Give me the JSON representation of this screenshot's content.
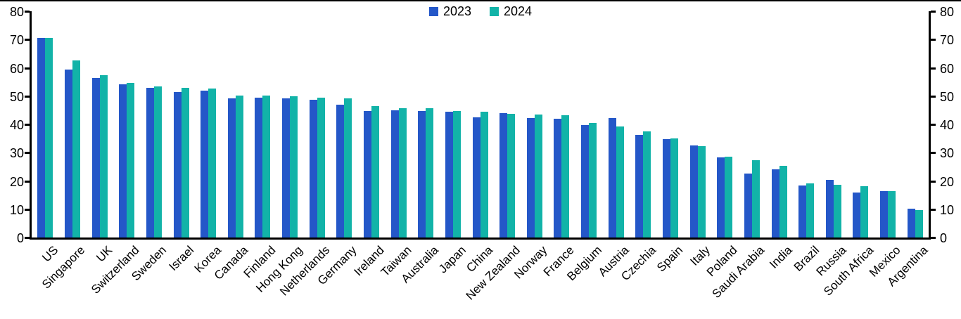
{
  "chart_data": {
    "type": "bar",
    "title": "",
    "xlabel": "",
    "ylabel": "",
    "ylim": [
      0,
      80
    ],
    "yticks": [
      0,
      10,
      20,
      30,
      40,
      50,
      60,
      70,
      80
    ],
    "grid": false,
    "legend_position": "top-center",
    "dual_y_axis": true,
    "axis_color": "#000000",
    "categories": [
      "US",
      "Singapore",
      "UK",
      "Switzerland",
      "Sweden",
      "Israel",
      "Korea",
      "Canada",
      "Finland",
      "Hong Kong",
      "Netherlands",
      "Germany",
      "Ireland",
      "Taiwan",
      "Australia",
      "Japan",
      "China",
      "New Zealand",
      "Norway",
      "France",
      "Belgium",
      "Austria",
      "Czechia",
      "Spain",
      "Italy",
      "Poland",
      "Saudi Arabia",
      "India",
      "Brazil",
      "Russia",
      "South Africa",
      "Mexico",
      "Argentina"
    ],
    "series": [
      {
        "name": "2023",
        "color": "#2457C8",
        "values": [
          70.5,
          59.5,
          56.4,
          54.2,
          53.0,
          51.5,
          52.0,
          49.3,
          49.5,
          49.3,
          48.8,
          47.0,
          44.6,
          44.9,
          44.8,
          44.4,
          42.5,
          44.0,
          42.2,
          42.1,
          39.7,
          42.3,
          36.3,
          34.7,
          32.6,
          28.2,
          22.6,
          24.2,
          18.4,
          20.4,
          15.8,
          16.5,
          10.2
        ]
      },
      {
        "name": "2024",
        "color": "#12B3A8",
        "values": [
          70.5,
          62.5,
          57.3,
          54.6,
          53.4,
          52.9,
          52.6,
          50.3,
          50.2,
          50.0,
          49.4,
          49.1,
          46.4,
          45.8,
          45.6,
          44.8,
          44.4,
          43.8,
          43.4,
          43.2,
          40.4,
          39.3,
          37.5,
          35.0,
          32.2,
          28.6,
          27.3,
          25.3,
          19.2,
          18.7,
          18.2,
          16.5,
          9.6
        ]
      }
    ]
  }
}
